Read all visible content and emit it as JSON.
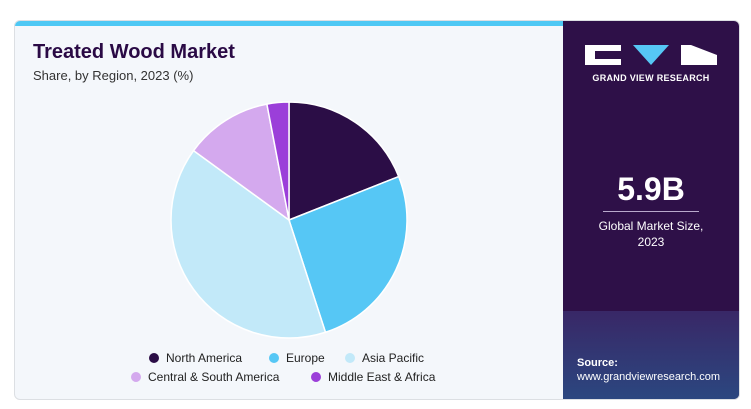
{
  "title": "Treated Wood Market",
  "subtitle": "Share, by Region, 2023 (%)",
  "chart_data": {
    "type": "pie",
    "title": "Treated Wood Market",
    "subtitle": "Share, by Region, 2023 (%)",
    "categories": [
      "North America",
      "Europe",
      "Asia Pacific",
      "Central & South America",
      "Middle East & Africa"
    ],
    "values": [
      19,
      26,
      40,
      12,
      3
    ],
    "colors": [
      "#2b0d46",
      "#56c7f5",
      "#c2e9f9",
      "#d4a9ee",
      "#9b3fd9"
    ],
    "legend_position": "bottom"
  },
  "legend": [
    {
      "label": "North America",
      "color": "#2b0d46"
    },
    {
      "label": "Europe",
      "color": "#56c7f5"
    },
    {
      "label": "Asia Pacific",
      "color": "#c2e9f9"
    },
    {
      "label": "Central & South America",
      "color": "#d4a9ee"
    },
    {
      "label": "Middle East & Africa",
      "color": "#9b3fd9"
    }
  ],
  "panel": {
    "brand": "GRAND VIEW RESEARCH",
    "market_size": "5.9B",
    "market_size_label": "Global Market Size, 2023",
    "source_title": "Source:",
    "source_url": "www.grandviewresearch.com"
  },
  "colors": {
    "accent": "#4ec8f4",
    "panel_bg": "#2e1048",
    "title": "#2a0a45"
  }
}
